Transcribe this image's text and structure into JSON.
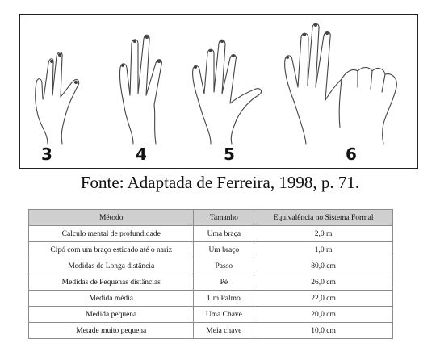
{
  "figure": {
    "hand_labels": [
      "3",
      "4",
      "5",
      "6"
    ]
  },
  "caption": "Fonte: Adaptada de Ferreira, 1998, p. 71.",
  "table": {
    "headers": [
      "Método",
      "Tamanho",
      "Equivalência no Sistema Formal"
    ],
    "rows": [
      [
        "Calculo mental de profundidade",
        "Uma braça",
        "2,0 m"
      ],
      [
        "Cipó com um braço esticado até o nariz",
        "Um braço",
        "1,0 m"
      ],
      [
        "Medidas de Longa distância",
        "Passo",
        "80,0 cm"
      ],
      [
        "Medidas de Pequenas distâncias",
        "Pé",
        "26,0 cm"
      ],
      [
        "Medida média",
        "Um Palmo",
        "22,0 cm"
      ],
      [
        "Medida pequena",
        "Uma Chave",
        "20,0 cm"
      ],
      [
        "Metade muito pequena",
        "Meia chave",
        "10,0 cm"
      ]
    ]
  }
}
